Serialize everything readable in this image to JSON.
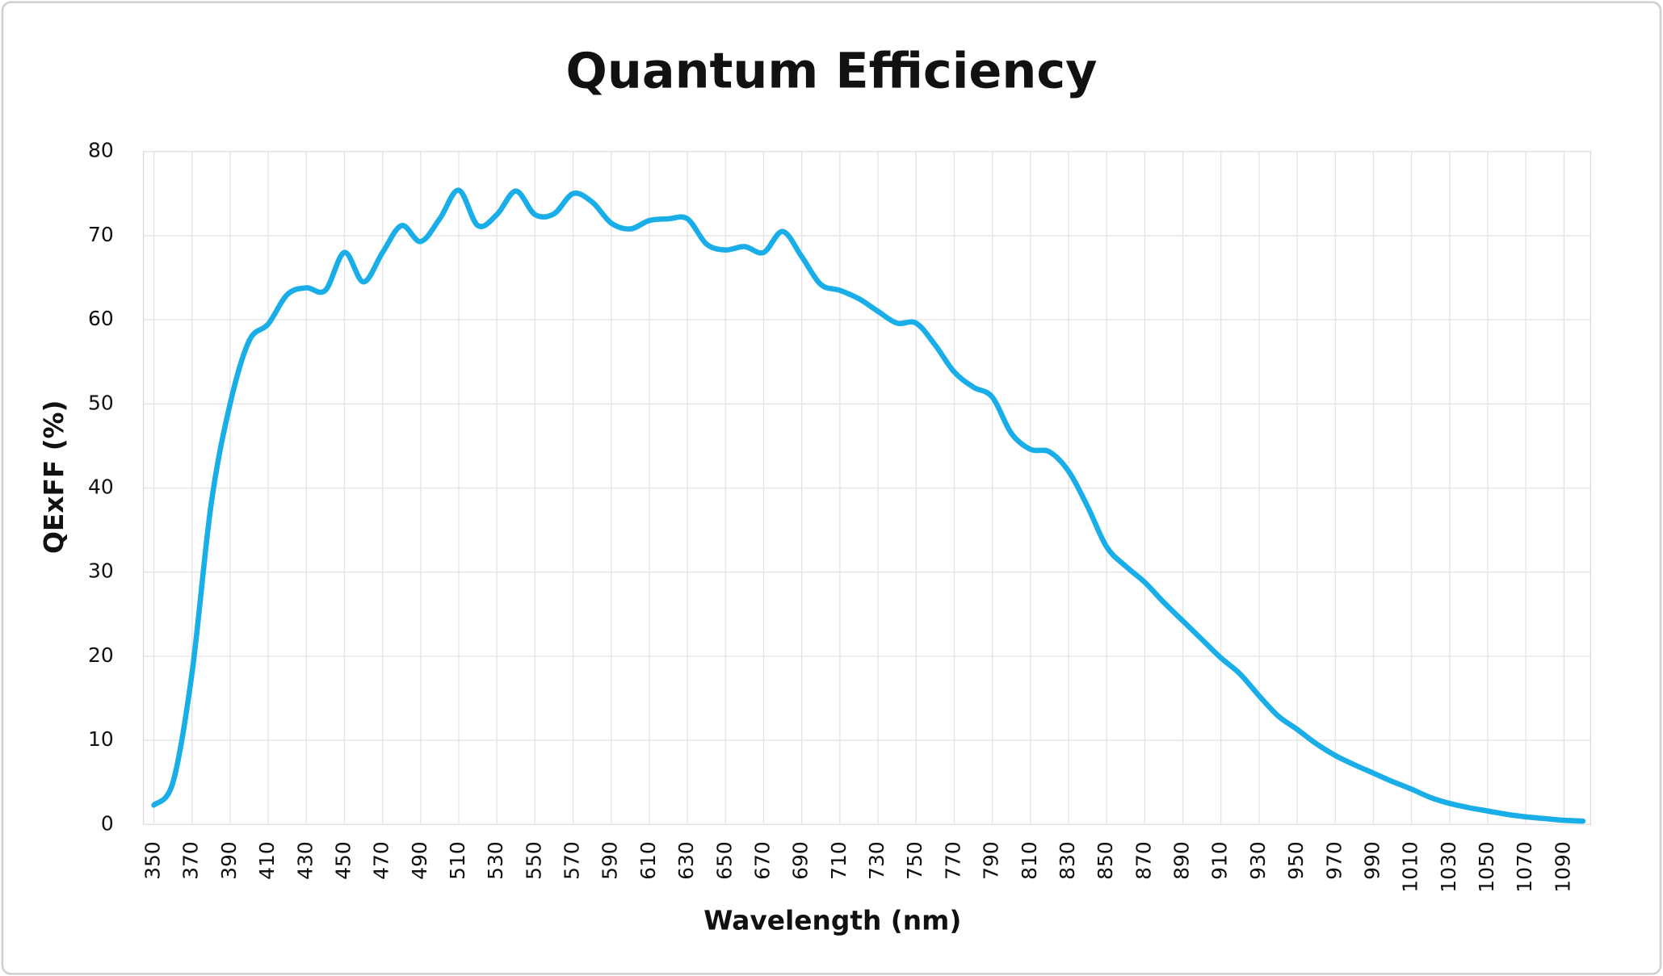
{
  "chart_data": {
    "type": "line",
    "title": "Quantum Efficiency",
    "x_label": "Wavelength (nm)",
    "y_label": "QExFF (%)",
    "x": [
      350,
      360,
      370,
      380,
      390,
      400,
      410,
      420,
      430,
      440,
      450,
      460,
      470,
      480,
      490,
      500,
      510,
      520,
      530,
      540,
      550,
      560,
      570,
      580,
      590,
      600,
      610,
      620,
      630,
      640,
      650,
      660,
      670,
      680,
      690,
      700,
      710,
      720,
      730,
      740,
      750,
      760,
      770,
      780,
      790,
      800,
      810,
      820,
      830,
      840,
      850,
      860,
      870,
      880,
      890,
      900,
      910,
      920,
      930,
      940,
      950,
      960,
      970,
      980,
      990,
      1000,
      1010,
      1020,
      1030,
      1040,
      1050,
      1060,
      1070,
      1080,
      1090,
      1100
    ],
    "series": [
      {
        "name": "QExFF",
        "color": "#1aaee8",
        "values": [
          2.3,
          5,
          18,
          38,
          50,
          57.5,
          59.5,
          63,
          63.8,
          63.5,
          68,
          64.5,
          68,
          71.2,
          69.3,
          72,
          75.4,
          71.2,
          72.5,
          75.3,
          72.5,
          72.6,
          75,
          74,
          71.5,
          70.8,
          71.8,
          72,
          72,
          69,
          68.3,
          68.7,
          68,
          70.5,
          67.5,
          64.2,
          63.5,
          62.5,
          61,
          59.6,
          59.6,
          57,
          53.8,
          52,
          50.8,
          46.5,
          44.6,
          44.3,
          42,
          37.8,
          33,
          30.7,
          28.8,
          26.4,
          24.2,
          22,
          19.8,
          17.9,
          15.3,
          12.9,
          11.3,
          9.6,
          8.2,
          7.1,
          6.1,
          5.1,
          4.2,
          3.2,
          2.5,
          2.0,
          1.6,
          1.2,
          0.9,
          0.7,
          0.5,
          0.4
        ]
      }
    ],
    "xlim": [
      344.5,
      1104
    ],
    "xticks": [
      350,
      370,
      390,
      410,
      430,
      450,
      470,
      490,
      510,
      530,
      550,
      570,
      590,
      610,
      630,
      650,
      670,
      690,
      710,
      730,
      750,
      770,
      790,
      810,
      830,
      850,
      870,
      890,
      910,
      930,
      950,
      970,
      990,
      1010,
      1030,
      1050,
      1070,
      1090
    ],
    "ylim": [
      0,
      80
    ],
    "yticks": [
      0,
      10,
      20,
      30,
      40,
      50,
      60,
      70,
      80
    ],
    "grid": true
  }
}
